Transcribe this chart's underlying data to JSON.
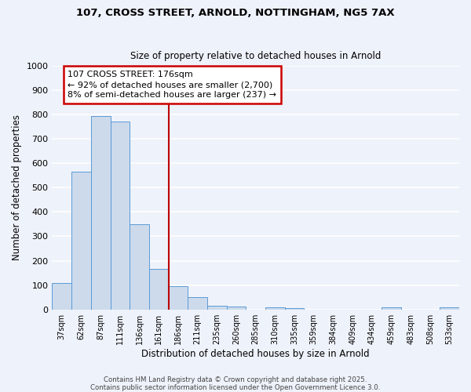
{
  "title1": "107, CROSS STREET, ARNOLD, NOTTINGHAM, NG5 7AX",
  "title2": "Size of property relative to detached houses in Arnold",
  "xlabel": "Distribution of detached houses by size in Arnold",
  "ylabel": "Number of detached properties",
  "categories": [
    "37sqm",
    "62sqm",
    "87sqm",
    "111sqm",
    "136sqm",
    "161sqm",
    "186sqm",
    "211sqm",
    "235sqm",
    "260sqm",
    "285sqm",
    "310sqm",
    "335sqm",
    "359sqm",
    "384sqm",
    "409sqm",
    "434sqm",
    "459sqm",
    "483sqm",
    "508sqm",
    "533sqm"
  ],
  "values": [
    110,
    565,
    795,
    770,
    350,
    165,
    95,
    52,
    15,
    12,
    0,
    8,
    5,
    0,
    0,
    0,
    0,
    8,
    0,
    0,
    8
  ],
  "bar_color": "#ccdaec",
  "bar_edge_color": "#5b9bd5",
  "red_line_index": 6,
  "red_line_color": "#bb0000",
  "ylim": [
    0,
    1000
  ],
  "yticks": [
    0,
    100,
    200,
    300,
    400,
    500,
    600,
    700,
    800,
    900,
    1000
  ],
  "annotation_text": "107 CROSS STREET: 176sqm\n← 92% of detached houses are smaller (2,700)\n8% of semi-detached houses are larger (237) →",
  "annotation_box_color": "#ffffff",
  "annotation_box_edge": "#cc0000",
  "background_color": "#eef2fa",
  "grid_color": "#ffffff",
  "footer1": "Contains HM Land Registry data © Crown copyright and database right 2025.",
  "footer2": "Contains public sector information licensed under the Open Government Licence 3.0."
}
